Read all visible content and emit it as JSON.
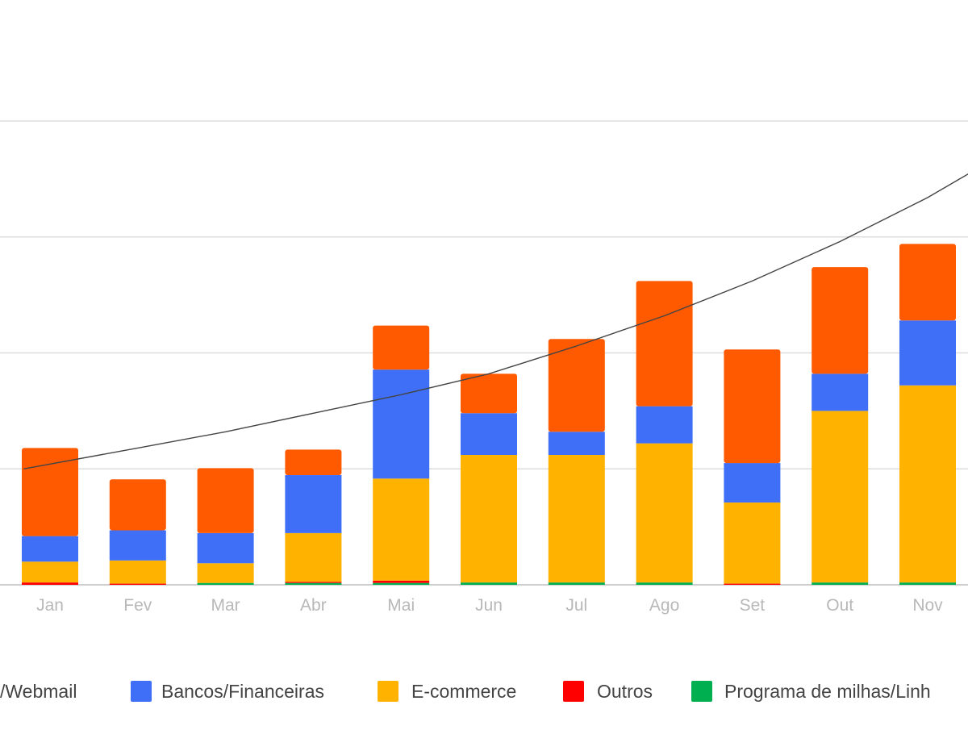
{
  "chart_data": {
    "type": "bar",
    "stacked": true,
    "categories": [
      "Jan",
      "Fev",
      "Mar",
      "Abr",
      "Mai",
      "Jun",
      "Jul",
      "Ago",
      "Set",
      "Out",
      "Nov"
    ],
    "series": [
      {
        "name": "Programa de milhas/Linh",
        "color": "#00b050",
        "values": [
          0,
          0,
          0.08,
          0.08,
          0.08,
          0.1,
          0.1,
          0.1,
          0,
          0.1,
          0.1
        ]
      },
      {
        "name": "Outros",
        "color": "#ff0000",
        "values": [
          0.1,
          0.05,
          0,
          0.05,
          0.1,
          0,
          0,
          0,
          0.05,
          0,
          0
        ]
      },
      {
        "name": "E-commerce",
        "color": "#ffb200",
        "values": [
          0.9,
          1.0,
          0.85,
          2.1,
          4.4,
          5.5,
          5.5,
          6.0,
          3.5,
          7.4,
          8.5
        ]
      },
      {
        "name": "Bancos/Financeiras",
        "color": "#3f6ff7",
        "values": [
          1.1,
          1.3,
          1.3,
          2.5,
          4.7,
          1.8,
          1.0,
          1.6,
          1.7,
          1.6,
          2.8
        ]
      },
      {
        "name": "/Webmail",
        "color": "#ff5a00",
        "values": [
          3.8,
          2.2,
          2.8,
          1.1,
          1.9,
          1.7,
          4.0,
          5.4,
          4.9,
          4.6,
          3.3
        ]
      }
    ],
    "trendline": {
      "type": "exponential",
      "color": "#444444",
      "x": [
        -0.3,
        1,
        2,
        3,
        4,
        5,
        6,
        7,
        8,
        9,
        10,
        10.5
      ],
      "y": [
        5.0,
        5.9,
        6.6,
        7.4,
        8.2,
        9.1,
        10.3,
        11.6,
        13.1,
        14.8,
        16.7,
        17.8
      ]
    },
    "ylim": [
      0,
      20
    ],
    "y_gridlines": [
      0,
      5,
      10,
      15,
      20
    ],
    "grid": true,
    "legend_position": "bottom",
    "title": "",
    "xlabel": "",
    "ylabel": ""
  }
}
